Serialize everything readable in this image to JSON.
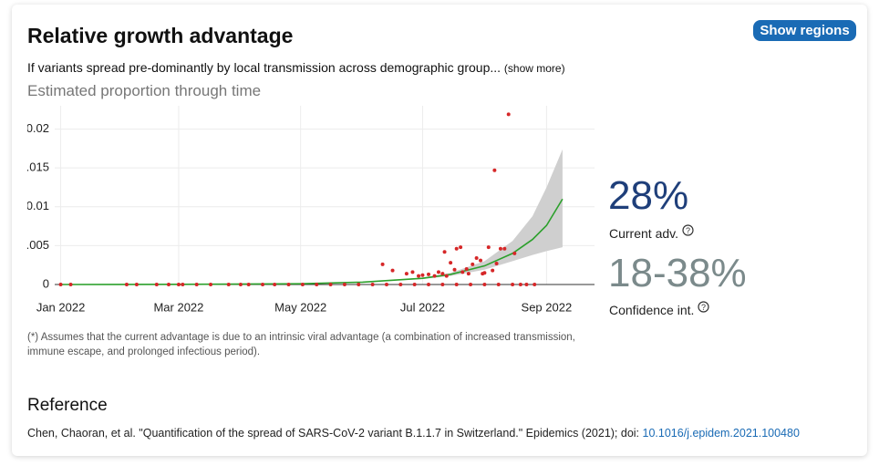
{
  "header": {
    "title": "Relative growth advantage",
    "button": "Show regions",
    "description": "If variants spread pre-dominantly by local transmission across demographic group...",
    "show_more": "(show more)"
  },
  "chart_data": {
    "type": "scatter",
    "title": "Estimated proportion through time",
    "x": [
      "2022-01-01",
      "2022-01-06",
      "2022-02-03",
      "2022-02-08",
      "2022-02-18",
      "2022-02-24",
      "2022-03-01",
      "2022-03-03",
      "2022-03-10",
      "2022-03-17",
      "2022-03-26",
      "2022-04-01",
      "2022-04-05",
      "2022-04-12",
      "2022-04-18",
      "2022-04-25",
      "2022-05-02",
      "2022-05-09",
      "2022-05-16",
      "2022-05-23",
      "2022-05-30",
      "2022-06-06",
      "2022-06-13",
      "2022-06-20",
      "2022-06-27",
      "2022-07-04",
      "2022-07-11",
      "2022-07-18",
      "2022-07-25",
      "2022-08-01",
      "2022-08-08",
      "2022-08-15",
      "2022-08-19",
      "2022-08-22",
      "2022-08-26",
      "2022-06-11",
      "2022-06-16",
      "2022-06-23",
      "2022-06-26",
      "2022-06-29",
      "2022-07-01",
      "2022-07-04",
      "2022-07-07",
      "2022-07-09",
      "2022-07-11",
      "2022-07-12",
      "2022-07-13",
      "2022-07-15",
      "2022-07-17",
      "2022-07-18",
      "2022-07-20",
      "2022-07-21",
      "2022-07-23",
      "2022-07-24",
      "2022-07-26",
      "2022-07-28",
      "2022-07-30",
      "2022-07-31",
      "2022-08-01",
      "2022-08-03",
      "2022-08-05",
      "2022-08-06",
      "2022-08-07",
      "2022-08-09",
      "2022-08-11",
      "2022-08-13",
      "2022-08-16"
    ],
    "values": [
      0,
      0,
      0,
      0,
      0,
      0,
      0,
      0,
      0,
      0,
      0,
      0,
      0,
      0,
      0,
      0,
      0,
      0,
      0,
      0,
      0,
      0,
      0,
      0,
      0,
      0,
      0,
      0,
      0,
      0,
      0,
      0,
      0,
      0,
      0,
      0.0026,
      0.0018,
      0.0014,
      0.0016,
      0.0011,
      0.0012,
      0.0013,
      0.0011,
      0.0016,
      0.0014,
      0.0042,
      0.0011,
      0.0028,
      0.0019,
      0.0046,
      0.0048,
      0.0016,
      0.002,
      0.0014,
      0.0026,
      0.0034,
      0.0031,
      0.0014,
      0.0015,
      0.0048,
      0.0018,
      0.0147,
      0.0027,
      0.0046,
      0.0046,
      0.0219,
      0.004
    ],
    "color": "#d62728",
    "fit": {
      "x": [
        "2022-01-01",
        "2022-03-01",
        "2022-05-01",
        "2022-06-01",
        "2022-07-01",
        "2022-07-15",
        "2022-08-01",
        "2022-08-15",
        "2022-08-25",
        "2022-09-01",
        "2022-09-09"
      ],
      "values": [
        0,
        2e-05,
        0.0001,
        0.0003,
        0.0008,
        0.0013,
        0.0024,
        0.004,
        0.0058,
        0.0076,
        0.011
      ],
      "upper": [
        0,
        2e-05,
        0.0001,
        0.0003,
        0.0009,
        0.0015,
        0.003,
        0.0056,
        0.0088,
        0.0125,
        0.0174
      ],
      "lower": [
        0,
        2e-05,
        0.0001,
        0.0003,
        0.0007,
        0.0011,
        0.0019,
        0.003,
        0.0038,
        0.0043,
        0.0048
      ],
      "color": "#2ca02c",
      "band_color": "#cfcfcf"
    },
    "xlim": [
      "2021-12-29",
      "2022-09-25"
    ],
    "xticks": [
      {
        "value": "2022-01-01",
        "label": "Jan 2022"
      },
      {
        "value": "2022-03-01",
        "label": "Mar 2022"
      },
      {
        "value": "2022-05-01",
        "label": "May 2022"
      },
      {
        "value": "2022-07-01",
        "label": "Jul 2022"
      },
      {
        "value": "2022-09-01",
        "label": "Sep 2022"
      }
    ],
    "ylim": [
      0,
      0.023
    ],
    "yticks": [
      0,
      0.005,
      0.01,
      0.015,
      0.02
    ],
    "grid": true
  },
  "stats": {
    "current": "28%",
    "current_label": "Current adv.",
    "interval": "18-38%",
    "interval_label": "Confidence int."
  },
  "footnote": "(*) Assumes that the current advantage is due to an intrinsic viral advantage (a combination of increased transmission, immune escape, and prolonged infectious period).",
  "reference": {
    "heading": "Reference",
    "citation": "Chen, Chaoran, et al. \"Quantification of the spread of SARS-CoV-2 variant B.1.1.7 in Switzerland.\" Epidemics (2021); doi:",
    "doi": "10.1016/j.epidem.2021.100480"
  }
}
